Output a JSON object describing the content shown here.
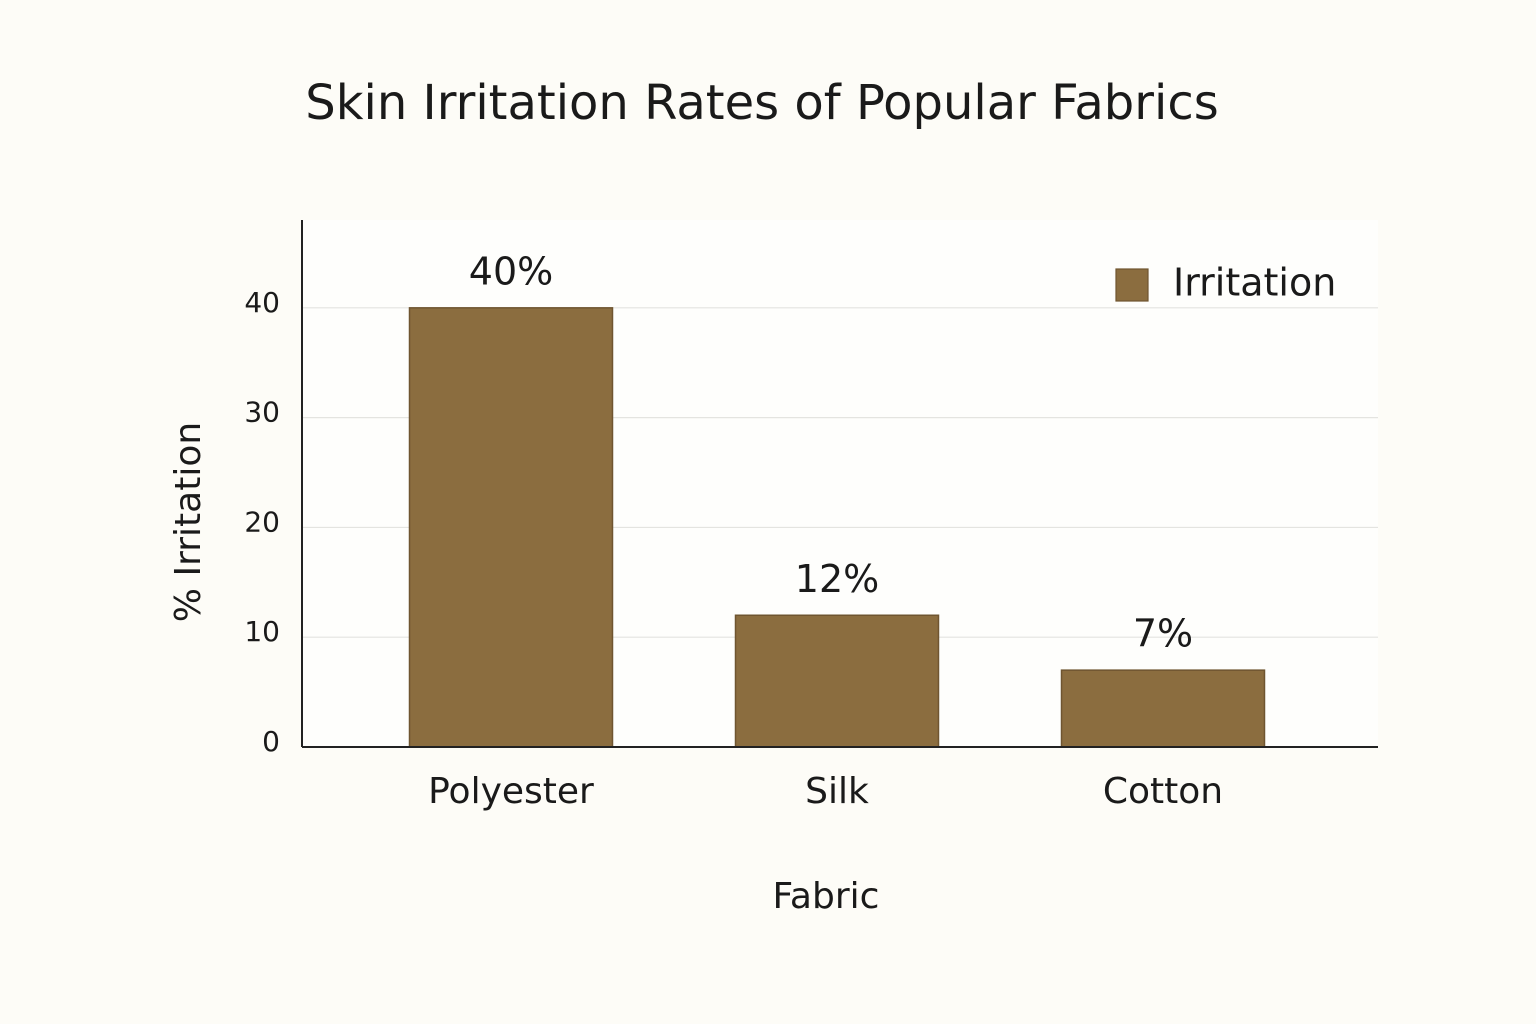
{
  "chart_data": {
    "type": "bar",
    "title": "Skin Irritation Rates of Popular Fabrics",
    "x_label": "Fabric",
    "y_label": "% Irritation",
    "categories": [
      "Polyester",
      "Silk",
      "Cotton"
    ],
    "series": [
      {
        "name": "Irritation",
        "color": "#8b6d3f",
        "values": [
          40,
          12,
          7
        ],
        "value_labels": [
          "40%",
          "12%",
          "7%"
        ]
      }
    ],
    "ylim": [
      0,
      48
    ],
    "yticks": [
      0,
      10,
      20,
      30,
      40
    ],
    "grid": true,
    "legend": "top-right"
  }
}
